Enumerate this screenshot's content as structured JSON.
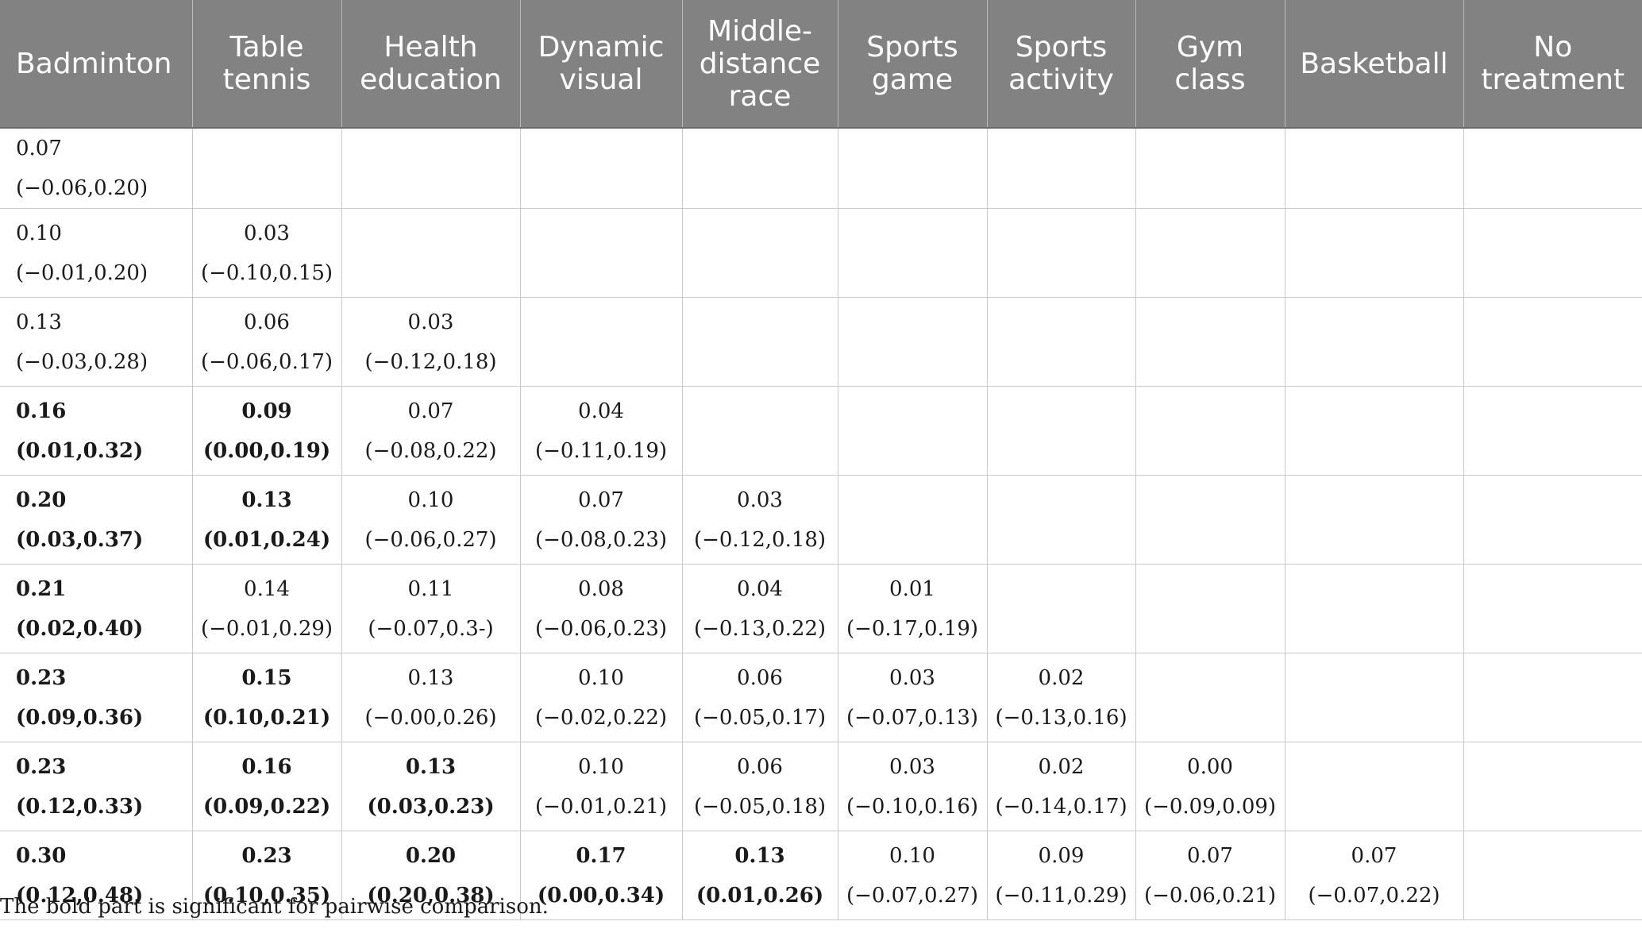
{
  "headers": [
    "Badminton",
    "Table tennis",
    "Health education",
    "Dynamic visual",
    "Middle-distance race",
    "Sports game",
    "Sports activity",
    "Gym class",
    "Basketball",
    "No treatment"
  ],
  "rows": [
    [
      {
        "v": "0.07 (−0.06,0.20)",
        "b": false
      }
    ],
    [
      {
        "v": "0.10 (−0.01,0.20)",
        "b": false
      },
      {
        "v": "0.03 (−0.10,0.15)",
        "b": false
      }
    ],
    [
      {
        "v": "0.13 (−0.03,0.28)",
        "b": false
      },
      {
        "v": "0.06 (−0.06,0.17)",
        "b": false
      },
      {
        "v": "0.03 (−0.12,0.18)",
        "b": false
      }
    ],
    [
      {
        "v": "0.16 (0.01,0.32)",
        "b": true
      },
      {
        "v": "0.09 (0.00,0.19)",
        "b": true
      },
      {
        "v": "0.07 (−0.08,0.22)",
        "b": false
      },
      {
        "v": "0.04 (−0.11,0.19)",
        "b": false
      }
    ],
    [
      {
        "v": "0.20 (0.03,0.37)",
        "b": true
      },
      {
        "v": "0.13 (0.01,0.24)",
        "b": true
      },
      {
        "v": "0.10 (−0.06,0.27)",
        "b": false
      },
      {
        "v": "0.07 (−0.08,0.23)",
        "b": false
      },
      {
        "v": "0.03 (−0.12,0.18)",
        "b": false
      }
    ],
    [
      {
        "v": "0.21 (0.02,0.40)",
        "b": true
      },
      {
        "v": "0.14 (−0.01,0.29)",
        "b": false
      },
      {
        "v": "0.11 (−0.07,0.3-)",
        "b": false
      },
      {
        "v": "0.08 (−0.06,0.23)",
        "b": false
      },
      {
        "v": "0.04 (−0.13,0.22)",
        "b": false
      },
      {
        "v": "0.01 (−0.17,0.19)",
        "b": false
      }
    ],
    [
      {
        "v": "0.23 (0.09,0.36)",
        "b": true
      },
      {
        "v": "0.15 (0.10,0.21)",
        "b": true
      },
      {
        "v": "0.13 (−0.00,0.26)",
        "b": false
      },
      {
        "v": "0.10 (−0.02,0.22)",
        "b": false
      },
      {
        "v": "0.06 (−0.05,0.17)",
        "b": false
      },
      {
        "v": "0.03 (−0.07,0.13)",
        "b": false
      },
      {
        "v": "0.02 (−0.13,0.16)",
        "b": false
      }
    ],
    [
      {
        "v": "0.23 (0.12,0.33)",
        "b": true
      },
      {
        "v": "0.16 (0.09,0.22)",
        "b": true
      },
      {
        "v": "0.13 (0.03,0.23)",
        "b": true
      },
      {
        "v": "0.10 (−0.01,0.21)",
        "b": false
      },
      {
        "v": "0.06 (−0.05,0.18)",
        "b": false
      },
      {
        "v": "0.03 (−0.10,0.16)",
        "b": false
      },
      {
        "v": "0.02 (−0.14,0.17)",
        "b": false
      },
      {
        "v": "0.00 (−0.09,0.09)",
        "b": false
      }
    ],
    [
      {
        "v": "0.30 (0.12,0.48)",
        "b": true
      },
      {
        "v": "0.23 (0.10,0.35)",
        "b": true
      },
      {
        "v": "0.20 (0.20,0.38)",
        "b": true
      },
      {
        "v": "0.17 (0.00,0.34)",
        "b": true
      },
      {
        "v": "0.13 (0.01,0.26)",
        "b": true
      },
      {
        "v": "0.10 (−0.07,0.27)",
        "b": false
      },
      {
        "v": "0.09 (−0.11,0.29)",
        "b": false
      },
      {
        "v": "0.07 (−0.06,0.21)",
        "b": false
      },
      {
        "v": "0.07 (−0.07,0.22)",
        "b": false
      }
    ]
  ],
  "note": "The bold part is significant for pairwise comparison.",
  "colors": {
    "header_bg": "#828282",
    "header_text": "#ffffff",
    "grid": "#c9c9c9"
  }
}
